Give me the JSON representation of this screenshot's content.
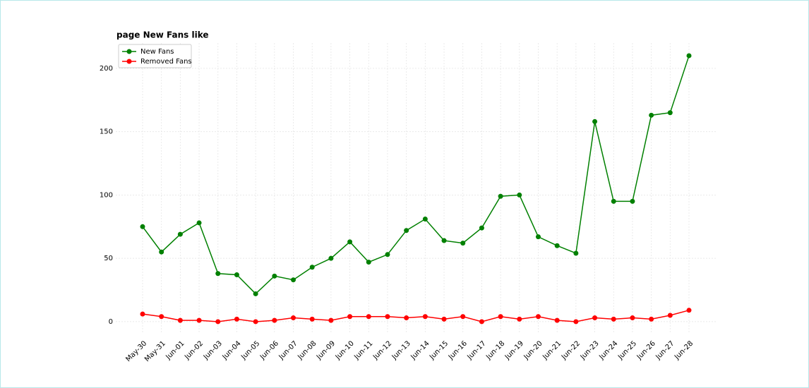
{
  "chart_data": {
    "type": "line",
    "title": "page New Fans like",
    "categories": [
      "May-30",
      "May-31",
      "Jun-01",
      "Jun-02",
      "Jun-03",
      "Jun-04",
      "Jun-05",
      "Jun-06",
      "Jun-07",
      "Jun-08",
      "Jun-09",
      "Jun-10",
      "Jun-11",
      "Jun-12",
      "Jun-13",
      "Jun-14",
      "Jun-15",
      "Jun-16",
      "Jun-17",
      "Jun-18",
      "Jun-19",
      "Jun-20",
      "Jun-21",
      "Jun-22",
      "Jun-23",
      "Jun-24",
      "Jun-25",
      "Jun-26",
      "Jun-27",
      "Jun-28"
    ],
    "series": [
      {
        "name": "New Fans",
        "color": "#008000",
        "values": [
          75,
          55,
          69,
          78,
          38,
          37,
          22,
          36,
          33,
          43,
          50,
          63,
          47,
          53,
          72,
          81,
          64,
          62,
          74,
          99,
          100,
          67,
          60,
          54,
          158,
          95,
          95,
          163,
          165,
          210
        ]
      },
      {
        "name": "Removed Fans",
        "color": "#ff0000",
        "values": [
          6,
          4,
          1,
          1,
          0,
          2,
          0,
          1,
          3,
          2,
          1,
          4,
          4,
          4,
          3,
          4,
          2,
          4,
          0,
          4,
          2,
          4,
          1,
          0,
          3,
          2,
          3,
          2,
          5,
          9
        ]
      }
    ],
    "ylim": [
      -9.5,
      220
    ],
    "yticks": [
      0,
      50,
      100,
      150,
      200
    ],
    "grid": true,
    "legend": "upper left"
  }
}
